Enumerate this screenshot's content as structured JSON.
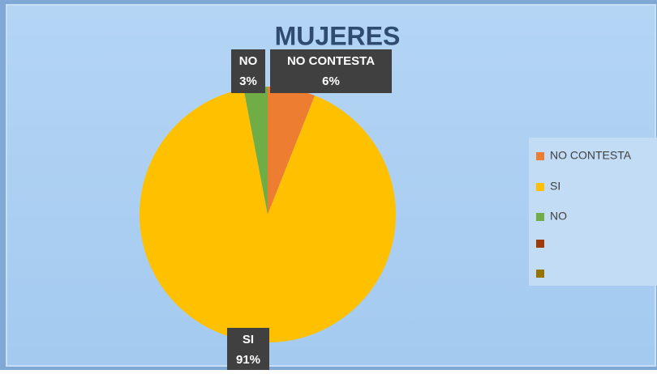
{
  "chart_data": {
    "type": "pie",
    "title": "MUJERES",
    "categories": [
      "NO CONTESTA",
      "SI",
      "NO",
      null,
      null
    ],
    "values": [
      6,
      91,
      3,
      0,
      0
    ],
    "value_labels": [
      "6%",
      "91%",
      "3%",
      null,
      null
    ],
    "colors": [
      "#ed7d31",
      "#ffc000",
      "#70ad47",
      "#9e3a0c",
      "#997300"
    ],
    "legend": "right"
  }
}
